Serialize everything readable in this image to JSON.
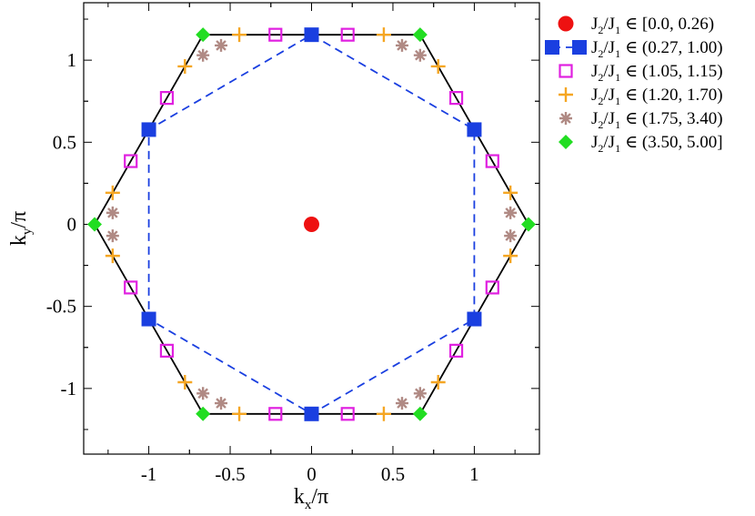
{
  "chart_data": {
    "type": "scatter",
    "xlabel": "k",
    "xlabel_sub": "x",
    "xlabel_suffix": "/π",
    "ylabel": "k",
    "ylabel_sub": "y",
    "ylabel_suffix": "/π",
    "xlim": [
      -1.4,
      1.4
    ],
    "ylim": [
      -1.4,
      1.35
    ],
    "xticks": [
      {
        "v": -1,
        "label": "-1"
      },
      {
        "v": -0.5,
        "label": "-0.5"
      },
      {
        "v": 0,
        "label": "0"
      },
      {
        "v": 0.5,
        "label": "0.5"
      },
      {
        "v": 1,
        "label": "1"
      }
    ],
    "yticks": [
      {
        "v": -1,
        "label": "-1"
      },
      {
        "v": -0.5,
        "label": "-0.5"
      },
      {
        "v": 0,
        "label": "0"
      },
      {
        "v": 0.5,
        "label": "0.5"
      },
      {
        "v": 1,
        "label": "1"
      }
    ],
    "legend_position": "outside-right",
    "boundary_hexagon": {
      "style": "solid",
      "color": "#000000",
      "points": [
        [
          -0.667,
          1.155
        ],
        [
          0.667,
          1.155
        ],
        [
          1.333,
          0
        ],
        [
          0.667,
          -1.155
        ],
        [
          -0.667,
          -1.155
        ],
        [
          -1.333,
          0
        ],
        [
          -0.667,
          1.155
        ]
      ]
    },
    "inner_hexagon": {
      "style": "dashed",
      "color": "#1a3fe0",
      "points": [
        [
          0,
          1.155
        ],
        [
          1.0,
          0.577
        ],
        [
          1.0,
          -0.577
        ],
        [
          0,
          -1.155
        ],
        [
          -1.0,
          -0.577
        ],
        [
          -1.0,
          0.577
        ],
        [
          0,
          1.155
        ]
      ]
    },
    "series": [
      {
        "legend_num": "J",
        "legend_num_sub": "2",
        "legend_den": "/J",
        "legend_den_sub": "1",
        "legend_range": "∈ [0.0, 0.26)",
        "marker": "circle",
        "color": "#ee1111",
        "points": [
          [
            0,
            0
          ]
        ]
      },
      {
        "legend_num": "J",
        "legend_num_sub": "2",
        "legend_den": "/J",
        "legend_den_sub": "1",
        "legend_range": "∈ (0.27, 1.00)",
        "marker": "square-filled",
        "color": "#1a3fe0",
        "points": [
          [
            0,
            1.155
          ],
          [
            1.0,
            0.577
          ],
          [
            1.0,
            -0.577
          ],
          [
            0,
            -1.155
          ],
          [
            -1.0,
            -0.577
          ],
          [
            -1.0,
            0.577
          ]
        ]
      },
      {
        "legend_num": "J",
        "legend_num_sub": "2",
        "legend_den": "/J",
        "legend_den_sub": "1",
        "legend_range": "∈ (1.05, 1.15)",
        "marker": "square-open",
        "color": "#e020e0",
        "points": [
          [
            -0.222,
            1.155
          ],
          [
            0.222,
            1.155
          ],
          [
            0.889,
            0.77
          ],
          [
            1.111,
            0.385
          ],
          [
            1.111,
            -0.385
          ],
          [
            0.889,
            -0.77
          ],
          [
            0.222,
            -1.155
          ],
          [
            -0.222,
            -1.155
          ],
          [
            -0.889,
            -0.77
          ],
          [
            -1.111,
            -0.385
          ],
          [
            -1.111,
            0.385
          ],
          [
            -0.889,
            0.77
          ]
        ]
      },
      {
        "legend_num": "J",
        "legend_num_sub": "2",
        "legend_den": "/J",
        "legend_den_sub": "1",
        "legend_range": "∈ (1.20, 1.70)",
        "marker": "plus",
        "color": "#f5a623",
        "points": [
          [
            -0.444,
            1.155
          ],
          [
            0.444,
            1.155
          ],
          [
            0.778,
            0.962
          ],
          [
            1.222,
            0.192
          ],
          [
            1.222,
            -0.192
          ],
          [
            0.778,
            -0.962
          ],
          [
            0.444,
            -1.155
          ],
          [
            -0.444,
            -1.155
          ],
          [
            -0.778,
            -0.962
          ],
          [
            -1.222,
            -0.192
          ],
          [
            -1.222,
            0.192
          ],
          [
            -0.778,
            0.962
          ]
        ]
      },
      {
        "legend_num": "J",
        "legend_num_sub": "2",
        "legend_den": "/J",
        "legend_den_sub": "1",
        "legend_range": "∈ (1.75, 3.40)",
        "marker": "asterisk",
        "color": "#b08a84",
        "points": [
          [
            -0.667,
            1.03
          ],
          [
            -0.556,
            1.09
          ],
          [
            0.556,
            1.09
          ],
          [
            0.667,
            1.03
          ],
          [
            1.222,
            0.07
          ],
          [
            1.222,
            -0.07
          ],
          [
            0.667,
            -1.03
          ],
          [
            0.556,
            -1.09
          ],
          [
            -0.556,
            -1.09
          ],
          [
            -0.667,
            -1.03
          ],
          [
            -1.222,
            -0.07
          ],
          [
            -1.222,
            0.07
          ]
        ]
      },
      {
        "legend_num": "J",
        "legend_num_sub": "2",
        "legend_den": "/J",
        "legend_den_sub": "1",
        "legend_range": "∈ (3.50, 5.00]",
        "marker": "diamond",
        "color": "#22dd22",
        "points": [
          [
            -0.667,
            1.155
          ],
          [
            0.667,
            1.155
          ],
          [
            1.333,
            0
          ],
          [
            0.667,
            -1.155
          ],
          [
            -0.667,
            -1.155
          ],
          [
            -1.333,
            0
          ]
        ]
      }
    ]
  }
}
